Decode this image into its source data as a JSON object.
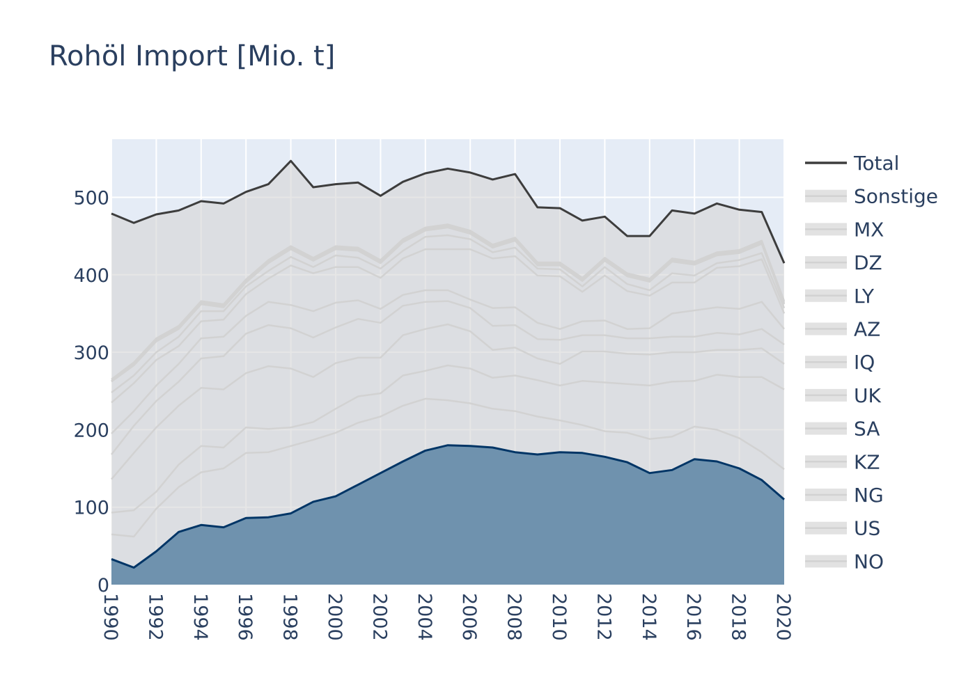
{
  "chart_data": {
    "type": "area",
    "title": "Rohöl Import [Mio. t]",
    "xlabel": "",
    "ylabel": "",
    "xlim": [
      1990,
      2020
    ],
    "ylim": [
      0,
      575
    ],
    "x_ticks": [
      "1990",
      "1992",
      "1994",
      "1996",
      "1998",
      "2000",
      "2002",
      "2004",
      "2006",
      "2008",
      "2010",
      "2012",
      "2014",
      "2016",
      "2018",
      "2020"
    ],
    "y_ticks": [
      "0",
      "100",
      "200",
      "300",
      "400",
      "500"
    ],
    "grid": true,
    "legend_position": "right",
    "colors": {
      "plot_bg": "#e5ecf6",
      "grid": "#ffffff",
      "total_line": "#3d3d3d",
      "stack_fill": "rgba(214,214,214,0.6)",
      "stack_line": "#d2d2d2",
      "highlight_fill": "#6f92ae",
      "highlight_line": "#003566"
    },
    "x": [
      1990,
      1991,
      1992,
      1993,
      1994,
      1995,
      1996,
      1997,
      1998,
      1999,
      2000,
      2001,
      2002,
      2003,
      2004,
      2005,
      2006,
      2007,
      2008,
      2009,
      2010,
      2011,
      2012,
      2013,
      2014,
      2015,
      2016,
      2017,
      2018,
      2019,
      2020
    ],
    "stack_order": [
      "NO",
      "US",
      "NG",
      "KZ",
      "SA",
      "UK",
      "IQ",
      "AZ",
      "LY",
      "DZ",
      "MX",
      "Sonstige"
    ],
    "cumulative": [
      {
        "name": "NO",
        "values": [
          33,
          22,
          43,
          68,
          77,
          74,
          86,
          87,
          92,
          107,
          114,
          129,
          144,
          159,
          173,
          180,
          179,
          177,
          171,
          168,
          171,
          170,
          165,
          158,
          144,
          148,
          162,
          159,
          150,
          135,
          110
        ]
      },
      {
        "name": "US",
        "values": [
          65,
          62,
          98,
          126,
          145,
          150,
          170,
          171,
          179,
          187,
          196,
          209,
          217,
          231,
          240,
          238,
          234,
          227,
          224,
          217,
          212,
          206,
          198,
          196,
          188,
          191,
          204,
          200,
          189,
          171,
          149
        ]
      },
      {
        "name": "NG",
        "values": [
          93,
          96,
          120,
          155,
          179,
          177,
          203,
          201,
          203,
          210,
          227,
          243,
          247,
          270,
          276,
          283,
          279,
          267,
          270,
          264,
          257,
          263,
          261,
          259,
          257,
          262,
          263,
          271,
          268,
          268,
          252
        ]
      },
      {
        "name": "KZ",
        "values": [
          136,
          170,
          203,
          231,
          254,
          252,
          273,
          282,
          279,
          268,
          286,
          293,
          293,
          322,
          330,
          336,
          327,
          303,
          306,
          292,
          285,
          301,
          301,
          298,
          297,
          300,
          300,
          303,
          303,
          305,
          285
        ]
      },
      {
        "name": "SA",
        "values": [
          168,
          205,
          237,
          262,
          292,
          295,
          324,
          335,
          331,
          319,
          332,
          343,
          338,
          360,
          365,
          366,
          357,
          334,
          335,
          317,
          316,
          322,
          322,
          318,
          318,
          320,
          320,
          325,
          323,
          330,
          310
        ]
      },
      {
        "name": "UK",
        "values": [
          195,
          224,
          257,
          285,
          318,
          320,
          347,
          365,
          361,
          353,
          364,
          367,
          356,
          374,
          380,
          380,
          368,
          357,
          358,
          338,
          330,
          340,
          341,
          330,
          331,
          350,
          354,
          358,
          356,
          365,
          330
        ]
      },
      {
        "name": "IQ",
        "values": [
          235,
          260,
          290,
          308,
          340,
          342,
          375,
          395,
          412,
          402,
          410,
          410,
          396,
          421,
          433,
          433,
          433,
          421,
          424,
          399,
          398,
          378,
          399,
          379,
          373,
          390,
          390,
          409,
          411,
          420,
          350
        ]
      },
      {
        "name": "AZ",
        "values": [
          248,
          270,
          300,
          320,
          353,
          353,
          385,
          405,
          423,
          410,
          425,
          422,
          408,
          431,
          449,
          451,
          446,
          429,
          435,
          408,
          407,
          385,
          410,
          388,
          380,
          402,
          399,
          415,
          419,
          428,
          357
        ]
      },
      {
        "name": "LY",
        "values": [
          262,
          283,
          314,
          330,
          362,
          358,
          390,
          415,
          433,
          418,
          433,
          431,
          415,
          442,
          457,
          461,
          453,
          435,
          444,
          412,
          412,
          392,
          418,
          398,
          391,
          417,
          413,
          425,
          428,
          440,
          362
        ]
      },
      {
        "name": "DZ",
        "values": [
          263,
          285,
          316,
          332,
          364,
          360,
          392,
          417,
          435,
          420,
          435,
          433,
          417,
          444,
          459,
          463,
          455,
          437,
          446,
          414,
          414,
          394,
          420,
          400,
          393,
          419,
          415,
          427,
          430,
          442,
          364
        ]
      },
      {
        "name": "MX",
        "values": [
          265,
          287,
          318,
          334,
          366,
          362,
          394,
          419,
          437,
          422,
          437,
          435,
          419,
          446,
          461,
          465,
          457,
          439,
          448,
          416,
          416,
          396,
          422,
          402,
          395,
          421,
          417,
          429,
          432,
          444,
          366
        ]
      },
      {
        "name": "Sonstige",
        "values": [
          479,
          467,
          478,
          483,
          495,
          492,
          507,
          517,
          547,
          513,
          517,
          519,
          502,
          520,
          531,
          537,
          532,
          523,
          530,
          487,
          486,
          470,
          475,
          450,
          450,
          483,
          479,
          492,
          484,
          481,
          415
        ]
      }
    ],
    "total": {
      "name": "Total",
      "values": [
        479,
        467,
        478,
        483,
        495,
        492,
        507,
        517,
        547,
        513,
        517,
        519,
        502,
        520,
        531,
        537,
        532,
        523,
        530,
        487,
        486,
        470,
        475,
        450,
        450,
        483,
        479,
        492,
        484,
        481,
        415
      ]
    },
    "legend": [
      "Total",
      "Sonstige",
      "MX",
      "DZ",
      "LY",
      "AZ",
      "IQ",
      "UK",
      "SA",
      "KZ",
      "NG",
      "US",
      "NO"
    ]
  }
}
